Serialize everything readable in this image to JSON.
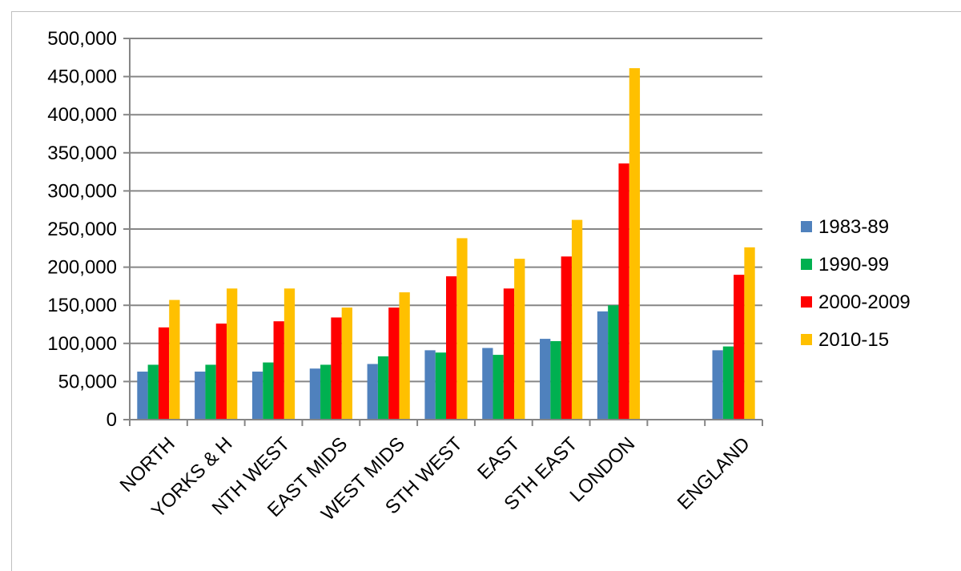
{
  "chart_data": {
    "type": "bar",
    "categories": [
      "NORTH",
      "YORKS & H",
      "NTH WEST",
      "EAST MIDS",
      "WEST MIDS",
      "STH WEST",
      "EAST",
      "STH EAST",
      "LONDON",
      "",
      "ENGLAND"
    ],
    "series": [
      {
        "name": "1983-89",
        "color": "#4f81bd",
        "values": [
          63000,
          63000,
          63000,
          67000,
          73000,
          91000,
          94000,
          106000,
          142000,
          null,
          91000
        ]
      },
      {
        "name": "1990-99",
        "color": "#00b050",
        "values": [
          72000,
          72000,
          75000,
          72000,
          83000,
          88000,
          85000,
          103000,
          150000,
          null,
          96000
        ]
      },
      {
        "name": "2000-2009",
        "color": "#ff0000",
        "values": [
          121000,
          126000,
          129000,
          134000,
          147000,
          188000,
          172000,
          214000,
          336000,
          null,
          190000
        ]
      },
      {
        "name": "2010-15",
        "color": "#ffc000",
        "values": [
          157000,
          172000,
          172000,
          147000,
          167000,
          238000,
          211000,
          262000,
          461000,
          null,
          226000
        ]
      }
    ],
    "yticks": [
      "0",
      "50,000",
      "100,000",
      "150,000",
      "200,000",
      "250,000",
      "300,000",
      "350,000",
      "400,000",
      "450,000",
      "500,000"
    ],
    "ylim": [
      0,
      500000
    ],
    "title": "",
    "xlabel": "",
    "ylabel": "",
    "grid": true,
    "legend": "right"
  }
}
